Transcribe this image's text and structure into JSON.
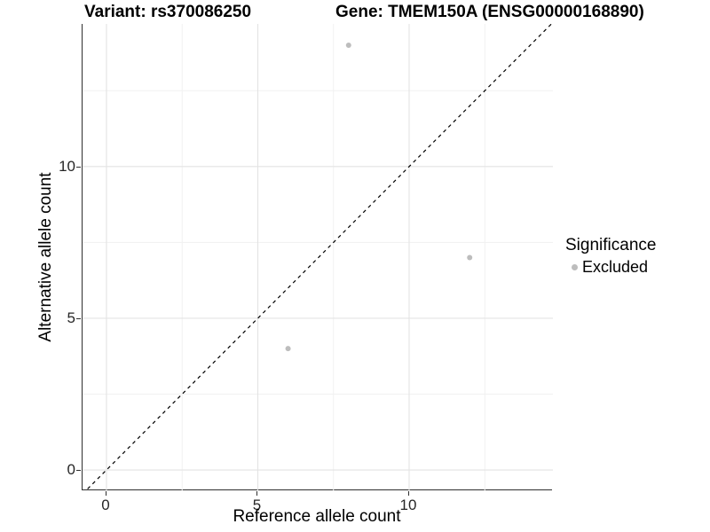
{
  "titles": {
    "variant": "Variant: rs370086250",
    "gene": "Gene: TMEM150A (ENSG00000168890)"
  },
  "axes": {
    "x_label": "Reference allele count",
    "y_label": "Alternative allele count"
  },
  "legend": {
    "title": "Significance",
    "items": [
      {
        "label": "Excluded",
        "color": "#bdbdbd"
      }
    ]
  },
  "colors": {
    "axis_line": "#2f2f2f",
    "grid_major": "#e3e3e3",
    "grid_minor": "#f1f1f1",
    "point": "#bdbdbd",
    "reference_line": "#000000",
    "tick_text": "#262626"
  },
  "chart_data": {
    "type": "scatter",
    "title": "Variant: rs370086250 | Gene: TMEM150A (ENSG00000168890)",
    "xlabel": "Reference allele count",
    "ylabel": "Alternative allele count",
    "xlim": [
      -0.79,
      14.75
    ],
    "ylim": [
      -0.67,
      14.7
    ],
    "x_ticks": [
      0,
      5,
      10
    ],
    "y_ticks": [
      0,
      5,
      10
    ],
    "x_minor_gridlines": [
      2.5,
      7.5,
      12.5
    ],
    "y_minor_gridlines": [
      2.5,
      7.5,
      12.5
    ],
    "grid": true,
    "legend_position": "right",
    "series": [
      {
        "name": "Excluded",
        "color": "#bdbdbd",
        "point_radius": 3,
        "points": [
          {
            "x": 8,
            "y": 14
          },
          {
            "x": 12,
            "y": 7
          },
          {
            "x": 6,
            "y": 4
          }
        ]
      }
    ],
    "reference_line": {
      "kind": "identity",
      "style": "dashed",
      "color": "#000000",
      "width": 1.2
    }
  }
}
